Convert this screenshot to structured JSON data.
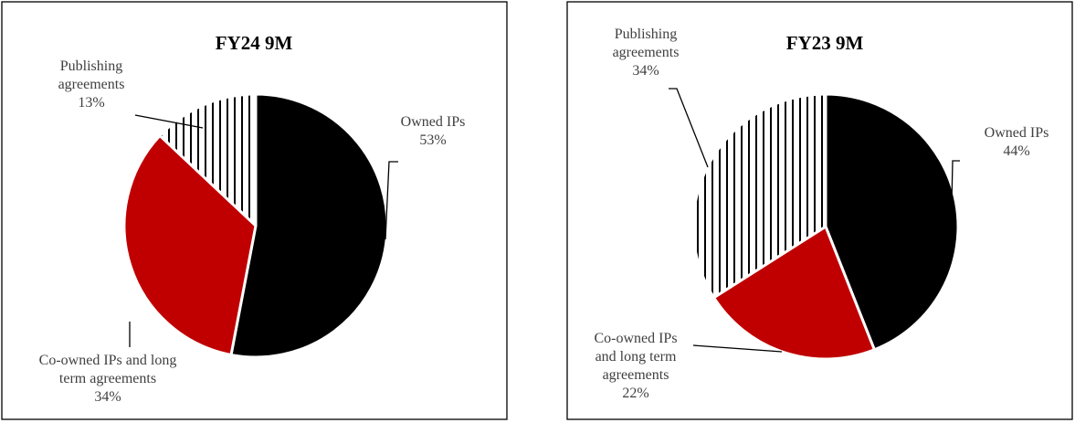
{
  "chart_data": [
    {
      "type": "pie",
      "title": "FY24 9M",
      "colors": {
        "Owned IPs": "#000000",
        "Co-owned IPs and long term agreements": "#c00000",
        "Publishing agreements": "pattern:vertical-stripes"
      },
      "slices": [
        {
          "key": "owned",
          "label_lines": [
            "Owned IPs",
            "53%"
          ],
          "label": "Owned IPs",
          "value": 53
        },
        {
          "key": "coowned",
          "label_lines": [
            "Co-owned IPs and long",
            "term agreements",
            "34%"
          ],
          "label": "Co-owned IPs and long term agreements",
          "value": 34
        },
        {
          "key": "publishing",
          "label_lines": [
            "Publishing",
            "agreements",
            "13%"
          ],
          "label": "Publishing agreements",
          "value": 13
        }
      ]
    },
    {
      "type": "pie",
      "title": "FY23 9M",
      "colors": {
        "Owned IPs": "#000000",
        "Co-owned IPs and long term agreements": "#c00000",
        "Publishing agreements": "pattern:vertical-stripes"
      },
      "slices": [
        {
          "key": "owned",
          "label_lines": [
            "Owned IPs",
            "44%"
          ],
          "label": "Owned IPs",
          "value": 44
        },
        {
          "key": "coowned",
          "label_lines": [
            "Co-owned IPs",
            "and long term",
            "agreements",
            "22%"
          ],
          "label": "Co-owned IPs and long term agreements",
          "value": 22
        },
        {
          "key": "publishing",
          "label_lines": [
            "Publishing",
            "agreements",
            "34%"
          ],
          "label": "Publishing agreements",
          "value": 34
        }
      ]
    }
  ]
}
